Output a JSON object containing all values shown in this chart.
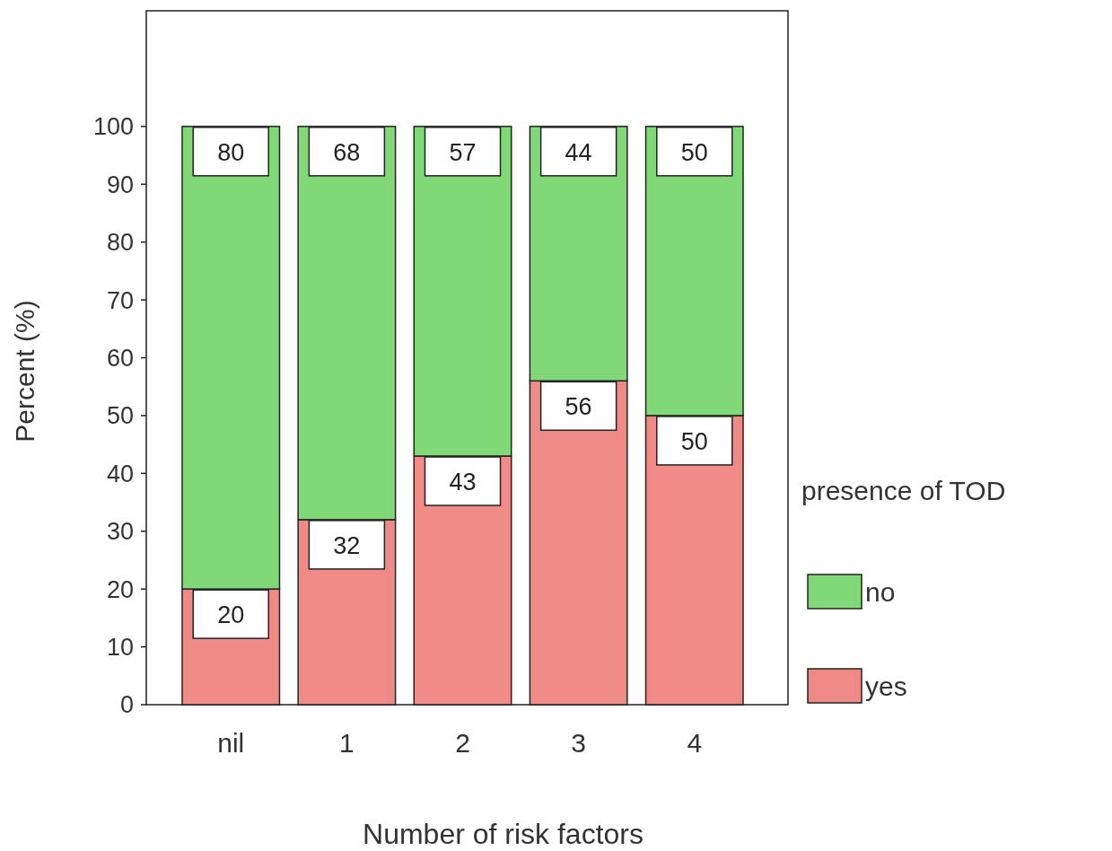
{
  "chart_data": {
    "type": "bar",
    "xlabel": "Number of risk factors",
    "ylabel": "Percent (%)",
    "legend_title": "presence of TOD",
    "categories": [
      "nil",
      "1",
      "2",
      "3",
      "4"
    ],
    "series": [
      {
        "name": "yes",
        "color": "#f08a86",
        "values": [
          20,
          32,
          43,
          56,
          50
        ]
      },
      {
        "name": "no",
        "color": "#80d877",
        "values": [
          80,
          68,
          57,
          44,
          50
        ]
      }
    ],
    "stacked": true,
    "data_labels": true,
    "ylim": [
      0,
      120
    ],
    "yticks": [
      0,
      10,
      20,
      30,
      40,
      50,
      60,
      70,
      80,
      90,
      100
    ],
    "grid": false,
    "legend": "right"
  }
}
